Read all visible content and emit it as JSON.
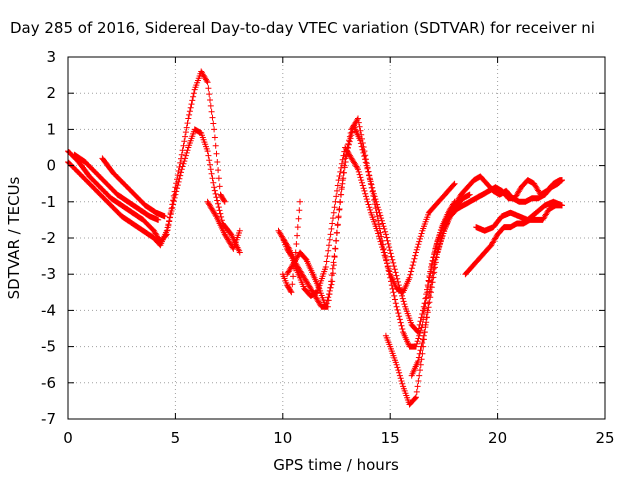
{
  "chart_data": {
    "type": "scatter",
    "title": "Day 285 of 2016, Sidereal Day-to-day VTEC variation (SDTVAR) for receiver ni",
    "xlabel": "GPS time / hours",
    "ylabel": "SDTVAR / TECUs",
    "xlim": [
      0,
      25
    ],
    "ylim": [
      -7,
      3
    ],
    "x_ticks": [
      "0",
      "5",
      "10",
      "15",
      "20",
      "25"
    ],
    "y_ticks": [
      "3",
      "2",
      "1",
      "0",
      "-1",
      "-2",
      "-3",
      "-4",
      "-5",
      "-6",
      "-7"
    ],
    "grid": true,
    "marker": "plus",
    "color": "#ff0000",
    "series": [
      {
        "x": [
          0.0,
          0.5,
          1.0,
          1.5,
          2.0,
          2.5,
          3.0,
          3.5,
          4.0,
          4.3,
          4.6,
          5.0,
          5.3,
          5.6,
          5.9,
          6.2,
          6.5,
          6.8,
          7.1,
          7.3
        ],
        "y": [
          0.4,
          0.1,
          -0.3,
          -0.6,
          -0.9,
          -1.1,
          -1.3,
          -1.5,
          -1.8,
          -2.1,
          -1.9,
          -0.6,
          0.3,
          1.3,
          2.1,
          2.6,
          2.3,
          1.0,
          -0.8,
          -1.0
        ]
      },
      {
        "x": [
          0.0,
          0.5,
          1.0,
          1.5,
          2.0,
          2.5,
          3.0,
          3.5,
          4.0,
          4.3,
          4.6,
          5.0,
          5.3,
          5.6,
          5.9,
          6.2,
          6.5,
          6.8,
          7.2,
          7.6,
          8.0
        ],
        "y": [
          0.1,
          -0.2,
          -0.5,
          -0.8,
          -1.1,
          -1.4,
          -1.6,
          -1.8,
          -2.0,
          -2.2,
          -1.8,
          -0.8,
          -0.1,
          0.5,
          1.0,
          0.9,
          0.4,
          -0.6,
          -1.6,
          -1.9,
          -2.4
        ]
      },
      {
        "x": [
          0.3,
          0.8,
          1.3,
          1.8,
          2.3,
          2.8,
          3.3,
          3.8,
          4.2
        ],
        "y": [
          0.3,
          0.1,
          -0.2,
          -0.5,
          -0.8,
          -1.0,
          -1.2,
          -1.4,
          -1.5
        ]
      },
      {
        "x": [
          1.6,
          2.1,
          2.6,
          3.1,
          3.6,
          4.1,
          4.5
        ],
        "y": [
          0.2,
          -0.2,
          -0.5,
          -0.8,
          -1.1,
          -1.3,
          -1.4
        ]
      },
      {
        "x": [
          6.5,
          6.9,
          7.3,
          7.7,
          8.0
        ],
        "y": [
          -1.0,
          -1.4,
          -1.9,
          -2.3,
          -1.8
        ]
      },
      {
        "x": [
          9.8,
          10.0,
          10.2,
          10.4,
          10.6,
          10.8,
          11.0,
          11.3,
          11.6,
          12.0,
          12.3,
          12.6,
          12.9,
          13.2,
          13.5,
          13.8,
          14.1,
          14.4,
          14.7,
          15.0,
          15.3,
          15.6,
          15.9,
          16.2,
          16.5,
          16.8,
          17.1,
          17.4,
          17.7,
          18.0
        ],
        "y": [
          -1.8,
          -2.0,
          -2.3,
          -2.5,
          -2.8,
          -3.1,
          -3.4,
          -3.6,
          -3.5,
          -2.8,
          -1.6,
          -0.4,
          0.5,
          0.2,
          -0.1,
          -0.7,
          -1.3,
          -1.8,
          -2.4,
          -3.0,
          -3.4,
          -3.5,
          -3.1,
          -2.4,
          -1.8,
          -1.3,
          -1.1,
          -0.9,
          -0.7,
          -0.5
        ]
      },
      {
        "x": [
          10.0,
          10.3,
          10.6,
          10.9,
          11.2,
          11.5,
          11.8,
          12.1,
          12.4,
          12.7,
          13.0,
          13.3,
          13.6,
          13.9,
          14.2,
          14.5,
          14.8,
          15.1,
          15.4,
          15.7,
          16.0,
          16.3,
          16.6,
          16.9,
          17.2,
          17.5,
          17.8,
          18.1,
          18.4,
          18.7
        ],
        "y": [
          -2.0,
          -2.3,
          -2.7,
          -3.0,
          -3.3,
          -3.6,
          -3.9,
          -3.9,
          -2.5,
          -0.8,
          0.4,
          1.1,
          0.7,
          0.0,
          -0.7,
          -1.3,
          -1.9,
          -2.6,
          -3.3,
          -3.9,
          -4.4,
          -4.6,
          -3.8,
          -2.8,
          -2.1,
          -1.6,
          -1.3,
          -1.1,
          -0.9,
          -0.8
        ]
      },
      {
        "x": [
          10.2,
          10.5,
          10.8,
          11.1,
          11.4,
          11.7,
          12.0,
          12.3,
          12.6,
          12.9,
          13.2,
          13.5,
          13.8,
          14.1,
          14.4,
          14.7,
          15.0,
          15.3,
          15.6,
          15.9,
          16.2,
          16.5,
          16.8,
          17.1,
          17.4,
          17.7,
          18.0
        ],
        "y": [
          -3.0,
          -2.7,
          -2.4,
          -2.6,
          -3.0,
          -3.4,
          -3.9,
          -3.2,
          -1.4,
          0.2,
          1.0,
          1.3,
          0.4,
          -0.5,
          -1.4,
          -2.3,
          -3.1,
          -3.9,
          -4.6,
          -5.0,
          -5.0,
          -4.4,
          -3.2,
          -2.3,
          -1.7,
          -1.3,
          -1.0
        ]
      },
      {
        "x": [
          10.0,
          10.2,
          10.4,
          10.6,
          10.8
        ],
        "y": [
          -3.0,
          -3.3,
          -3.5,
          -2.4,
          -1.0
        ]
      },
      {
        "x": [
          14.8,
          15.0,
          15.3,
          15.6,
          15.9,
          16.2,
          16.5,
          16.8,
          17.1,
          17.4,
          17.7,
          18.0,
          18.3,
          18.6,
          18.9,
          19.2,
          19.5,
          19.8,
          20.1,
          20.4,
          20.7,
          21.0,
          21.3,
          21.6,
          21.9,
          22.2,
          22.5,
          22.8,
          23.0
        ],
        "y": [
          -4.7,
          -5.0,
          -5.5,
          -6.1,
          -6.6,
          -6.4,
          -5.2,
          -3.6,
          -2.6,
          -2.0,
          -1.5,
          -1.1,
          -0.8,
          -0.6,
          -0.4,
          -0.3,
          -0.5,
          -0.7,
          -0.8,
          -0.7,
          -0.9,
          -1.0,
          -1.0,
          -0.9,
          -0.9,
          -0.8,
          -0.6,
          -0.5,
          -0.4
        ]
      },
      {
        "x": [
          16.0,
          16.3,
          16.6,
          16.9,
          17.2,
          17.5,
          17.8,
          18.1,
          18.4,
          18.7,
          19.0,
          19.3,
          19.6,
          19.9,
          20.2,
          20.5,
          20.8,
          21.1,
          21.4,
          21.7,
          22.0,
          22.3,
          22.6,
          22.9,
          23.0
        ],
        "y": [
          -5.8,
          -5.4,
          -4.6,
          -3.5,
          -2.4,
          -1.8,
          -1.4,
          -1.2,
          -1.1,
          -1.0,
          -0.9,
          -0.8,
          -0.7,
          -0.6,
          -0.7,
          -0.9,
          -0.9,
          -0.6,
          -0.4,
          -0.5,
          -0.8,
          -0.7,
          -0.5,
          -0.4,
          -0.4
        ]
      },
      {
        "x": [
          18.5,
          18.8,
          19.1,
          19.4,
          19.7,
          20.0,
          20.3,
          20.6,
          20.9,
          21.2,
          21.5,
          21.8,
          22.1,
          22.4,
          22.7,
          23.0
        ],
        "y": [
          -3.0,
          -2.8,
          -2.6,
          -2.4,
          -2.2,
          -1.9,
          -1.7,
          -1.7,
          -1.6,
          -1.6,
          -1.5,
          -1.5,
          -1.5,
          -1.2,
          -1.1,
          -1.1
        ]
      },
      {
        "x": [
          19.0,
          19.4,
          19.8,
          20.2,
          20.6,
          21.0,
          21.4,
          21.8,
          22.2,
          22.6,
          23.0
        ],
        "y": [
          -1.7,
          -1.8,
          -1.7,
          -1.4,
          -1.3,
          -1.4,
          -1.5,
          -1.3,
          -1.1,
          -1.0,
          -1.1
        ]
      }
    ]
  }
}
